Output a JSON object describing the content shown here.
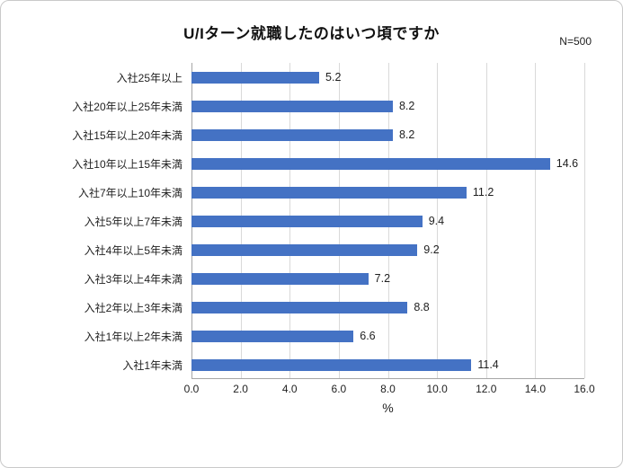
{
  "header": {
    "title": "U/Iターン就職したのはいつ頃ですか",
    "n_label": "N=500"
  },
  "chart_data": {
    "type": "bar",
    "orientation": "horizontal",
    "title": "U/Iターン就職したのはいつ頃ですか",
    "annotation": "N=500",
    "categories": [
      "入社25年以上",
      "入社20年以上25年未満",
      "入社15年以上20年未満",
      "入社10年以上15年未満",
      "入社7年以上10年未満",
      "入社5年以上7年未満",
      "入社4年以上5年未満",
      "入社3年以上4年未満",
      "入社2年以上3年未満",
      "入社1年以上2年未満",
      "入社1年未満"
    ],
    "values": [
      5.2,
      8.2,
      8.2,
      14.6,
      11.2,
      9.4,
      9.2,
      7.2,
      8.8,
      6.6,
      11.4
    ],
    "value_labels": [
      "5.2",
      "8.2",
      "8.2",
      "14.6",
      "11.2",
      "9.4",
      "9.2",
      "7.2",
      "8.8",
      "6.6",
      "11.4"
    ],
    "xlabel": "%",
    "xlim": [
      0,
      16
    ],
    "xticks": [
      0,
      2,
      4,
      6,
      8,
      10,
      12,
      14,
      16
    ],
    "xtick_labels": [
      "0.0",
      "2.0",
      "4.0",
      "6.0",
      "8.0",
      "10.0",
      "12.0",
      "14.0",
      "16.0"
    ],
    "bar_color": "#4472C4",
    "grid": true,
    "legend": false
  }
}
